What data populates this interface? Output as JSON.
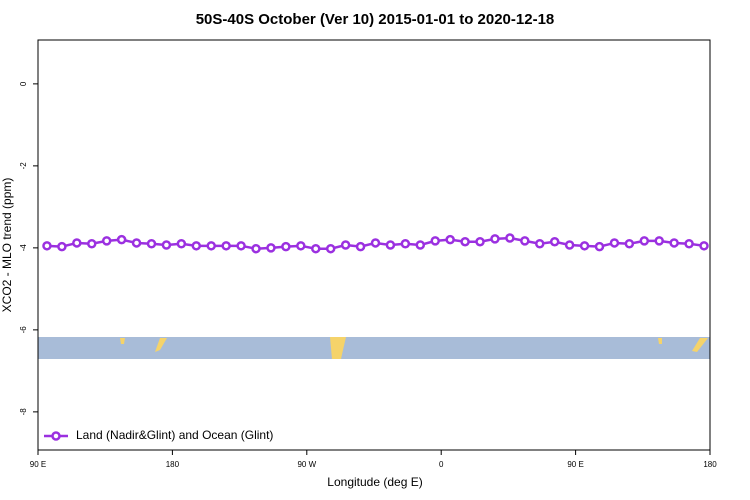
{
  "chart_data": {
    "type": "line",
    "title": "50S-40S October (Ver 10)   2015-01-01 to 2020-12-18",
    "x_label": "Longitude (deg E)",
    "y_label": "XCO2 - MLO trend (ppm)",
    "x": [
      96,
      106,
      116,
      126,
      136,
      146,
      156,
      166,
      176,
      186,
      196,
      206,
      216,
      226,
      236,
      246,
      256,
      266,
      276,
      286,
      296,
      306,
      316,
      326,
      336,
      346,
      356,
      366,
      376,
      386,
      396,
      406,
      416,
      426,
      436,
      446,
      456,
      466,
      476,
      486,
      496,
      506,
      516,
      526,
      536
    ],
    "series": [
      {
        "name": "Land (Nadir&Glint) and Ocean (Glint)",
        "color": "#9b30e0",
        "values": [
          -3.95,
          -3.97,
          -3.88,
          -3.9,
          -3.83,
          -3.8,
          -3.88,
          -3.9,
          -3.93,
          -3.9,
          -3.95,
          -3.95,
          -3.95,
          -3.95,
          -4.02,
          -4.0,
          -3.97,
          -3.95,
          -4.02,
          -4.02,
          -3.93,
          -3.97,
          -3.88,
          -3.93,
          -3.9,
          -3.93,
          -3.83,
          -3.8,
          -3.85,
          -3.85,
          -3.78,
          -3.76,
          -3.83,
          -3.9,
          -3.85,
          -3.93,
          -3.95,
          -3.97,
          -3.88,
          -3.9,
          -3.83,
          -3.83,
          -3.88,
          -3.9,
          -3.95
        ]
      }
    ],
    "xlim": [
      90,
      540
    ],
    "xticks": [
      {
        "value": 90,
        "label": "90 E"
      },
      180,
      {
        "value": 270,
        "label": "90 W"
      },
      {
        "value": 360,
        "label": "0"
      },
      {
        "value": 450,
        "label": "90 E"
      },
      {
        "value": 540,
        "label": "180"
      }
    ],
    "ylim": [
      -8.93,
      1.07
    ],
    "yticks": [
      0,
      -2,
      -4,
      -6,
      -8
    ],
    "legend": "bottom left"
  }
}
